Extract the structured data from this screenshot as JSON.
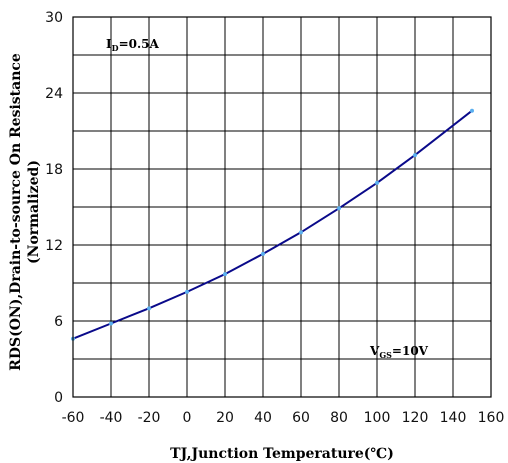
{
  "chart_data": {
    "type": "line",
    "xlabel": "TJ,Junction Temperature(℃)",
    "ylabel_line1": "RDS(ON),Drain-to-source On Resistance",
    "ylabel_line2": "(Normalized)",
    "xlim": [
      -60,
      160
    ],
    "ylim": [
      0,
      30
    ],
    "x_ticks": [
      -60,
      -40,
      -20,
      0,
      20,
      40,
      60,
      80,
      100,
      120,
      140,
      160
    ],
    "y_ticks": [
      0,
      6,
      12,
      18,
      24,
      30
    ],
    "x_tick_labels": [
      "-60",
      "-40",
      "-20",
      "0",
      "20",
      "40",
      "60",
      "80",
      "100",
      "120",
      "140",
      "160"
    ],
    "y_tick_labels": [
      "0",
      "6",
      "12",
      "18",
      "24",
      "30"
    ],
    "grid": true,
    "annotations": {
      "id": {
        "main": "I",
        "sub": "D",
        "rest": "=0.5A"
      },
      "vgs": {
        "main": "V",
        "sub": "GS",
        "rest": "=10V"
      }
    },
    "series": [
      {
        "color": "#0a0a8a",
        "marker_color": "#5ab0f0",
        "x": [
          -60,
          -40,
          -20,
          0,
          20,
          40,
          60,
          80,
          100,
          120,
          150
        ],
        "y": [
          4.6,
          5.8,
          7.0,
          8.3,
          9.7,
          11.3,
          13.0,
          14.9,
          16.9,
          19.1,
          22.6
        ]
      }
    ]
  }
}
